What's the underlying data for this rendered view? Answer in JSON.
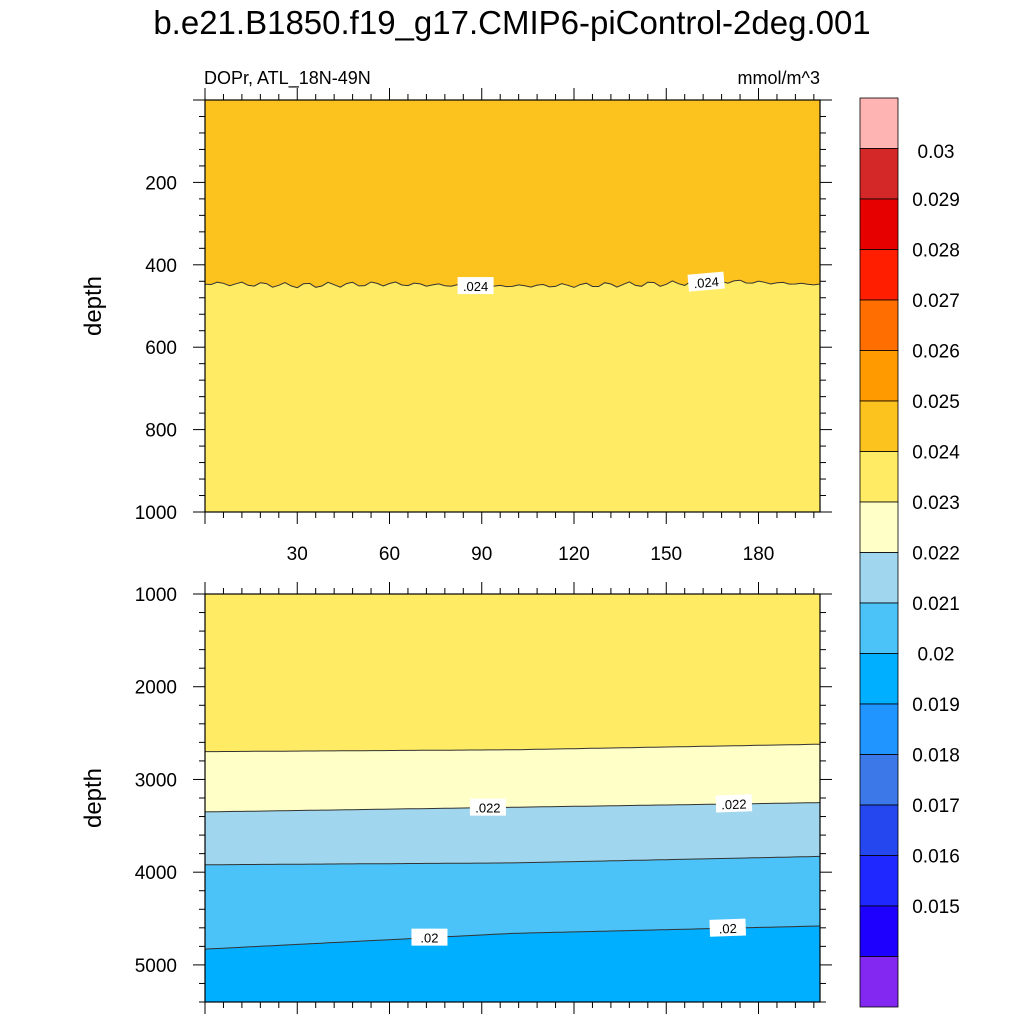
{
  "title": "b.e21.B1850.f19_g17.CMIP6-piControl-2deg.001",
  "left_string": "DOPr, ATL_18N-49N",
  "right_string": "mmol/m^3",
  "chart_data": [
    {
      "type": "contour",
      "panel": "upper",
      "variable": "DOPr",
      "region": "ATL_18N-49N",
      "units": "mmol/m^3",
      "ylabel": "depth",
      "ylim": [
        0,
        1000
      ],
      "y_reversed": true,
      "xlim": [
        0,
        200
      ],
      "yticks": [
        200,
        400,
        600,
        800,
        1000
      ],
      "xticks": [
        30,
        60,
        90,
        120,
        150,
        180
      ],
      "fill_bands": [
        {
          "range": [
            0.024,
            0.025
          ],
          "depth_top": 0,
          "depth_bottom": 450
        },
        {
          "range": [
            0.023,
            0.024
          ],
          "depth_top": 450,
          "depth_bottom": 1000
        }
      ],
      "contour_lines": [
        {
          "level": 0.024,
          "depth_at_x": [
            [
              0,
              445
            ],
            [
              30,
              450
            ],
            [
              60,
              446
            ],
            [
              90,
              452
            ],
            [
              120,
              450
            ],
            [
              150,
              446
            ],
            [
              170,
              440
            ],
            [
              200,
              448
            ]
          ]
        }
      ],
      "contour_labels": [
        ".024",
        ".024"
      ]
    },
    {
      "type": "contour",
      "panel": "lower",
      "variable": "DOPr",
      "units": "mmol/m^3",
      "ylabel": "depth",
      "ylim": [
        1000,
        5400
      ],
      "y_reversed": true,
      "xlim": [
        0,
        200
      ],
      "yticks": [
        1000,
        2000,
        3000,
        4000,
        5000
      ],
      "fill_bands": [
        {
          "range": [
            0.023,
            0.024
          ]
        },
        {
          "range": [
            0.022,
            0.023
          ]
        },
        {
          "range": [
            0.021,
            0.022
          ]
        },
        {
          "range": [
            0.02,
            0.021
          ]
        },
        {
          "range": [
            0.019,
            0.02
          ]
        }
      ],
      "contour_lines": [
        {
          "level": 0.023,
          "depth_at_x": [
            [
              0,
              2700
            ],
            [
              100,
              2680
            ],
            [
              200,
              2620
            ]
          ]
        },
        {
          "level": 0.022,
          "depth_at_x": [
            [
              0,
              3350
            ],
            [
              100,
              3300
            ],
            [
              200,
              3250
            ]
          ]
        },
        {
          "level": 0.021,
          "depth_at_x": [
            [
              0,
              3920
            ],
            [
              100,
              3900
            ],
            [
              200,
              3830
            ]
          ]
        },
        {
          "level": 0.02,
          "depth_at_x": [
            [
              0,
              4830
            ],
            [
              100,
              4660
            ],
            [
              200,
              4580
            ]
          ]
        }
      ],
      "contour_labels": [
        ".022",
        ".022",
        ".02",
        ".02"
      ]
    }
  ],
  "colorbar": {
    "colors": [
      "#ffb4b4",
      "#d42828",
      "#e60000",
      "#ff1e00",
      "#ff6e00",
      "#ff9b00",
      "#fcc31e",
      "#ffeb64",
      "#ffffc8",
      "#a0d7ee",
      "#4bc3f8",
      "#00afff",
      "#2094ff",
      "#3c78e8",
      "#2447f0",
      "#1e28ff",
      "#1e00ff",
      "#8228f0"
    ],
    "labels": [
      "0.03",
      "0.029",
      "0.028",
      "0.027",
      "0.026",
      "0.025",
      "0.024",
      "0.023",
      "0.022",
      "0.021",
      "0.02",
      "0.019",
      "0.018",
      "0.017",
      "0.016",
      "0.015"
    ]
  },
  "fill_colors": {
    "0.024-0.025": "#fcc31e",
    "0.023-0.024": "#ffeb64",
    "0.022-0.023": "#ffffc8",
    "0.021-0.022": "#a0d7ee",
    "0.020-0.021": "#4bc3f8",
    "0.019-0.020": "#00afff"
  }
}
